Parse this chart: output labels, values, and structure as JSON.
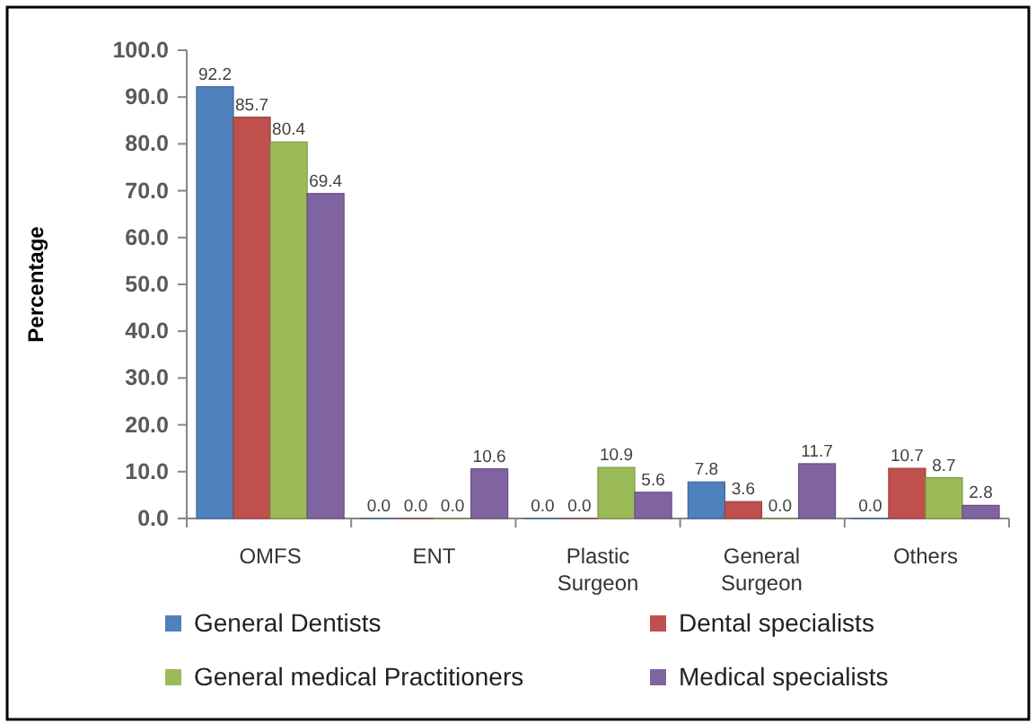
{
  "chart_data": {
    "type": "bar",
    "ylabel": "Percentage",
    "categories": [
      "OMFS",
      "ENT",
      "Plastic Surgeon",
      "General Surgeon",
      "Others"
    ],
    "series": [
      {
        "name": "General Dentists",
        "color": "#4f81bd",
        "values": [
          92.2,
          0.0,
          0.0,
          7.8,
          0.0
        ],
        "value_labels": [
          "92.2",
          "0.0",
          "0.0",
          "7.8",
          "0.0"
        ]
      },
      {
        "name": "Dental specialists",
        "color": "#c0504d",
        "values": [
          85.7,
          0.0,
          0.0,
          3.6,
          10.7
        ],
        "value_labels": [
          "85.7",
          "0.0",
          "0.0",
          "3.6",
          "10.7"
        ]
      },
      {
        "name": "General medical Practitioners",
        "color": "#9bbb59",
        "values": [
          80.4,
          0.0,
          10.9,
          0.0,
          8.7
        ],
        "value_labels": [
          "80.4",
          "0.0",
          "10.9",
          "0.0",
          "8.7"
        ]
      },
      {
        "name": "Medical specialists",
        "color": "#8064a2",
        "values": [
          69.4,
          10.6,
          5.6,
          11.7,
          2.8
        ],
        "value_labels": [
          "69.4",
          "10.6",
          "5.6",
          "11.7",
          "2.8"
        ]
      }
    ],
    "ylim": [
      0,
      100
    ],
    "yticks": [
      {
        "value": 0,
        "label": "0.0"
      },
      {
        "value": 10,
        "label": "10.0"
      },
      {
        "value": 20,
        "label": "20.0"
      },
      {
        "value": 30,
        "label": "30.0"
      },
      {
        "value": 40,
        "label": "40.0"
      },
      {
        "value": 50,
        "label": "50.0"
      },
      {
        "value": 60,
        "label": "60.0"
      },
      {
        "value": 70,
        "label": "70.0"
      },
      {
        "value": 80,
        "label": "80.0"
      },
      {
        "value": 90,
        "label": "90.0"
      },
      {
        "value": 100,
        "label": "100.0"
      }
    ],
    "legend": "bottom"
  }
}
